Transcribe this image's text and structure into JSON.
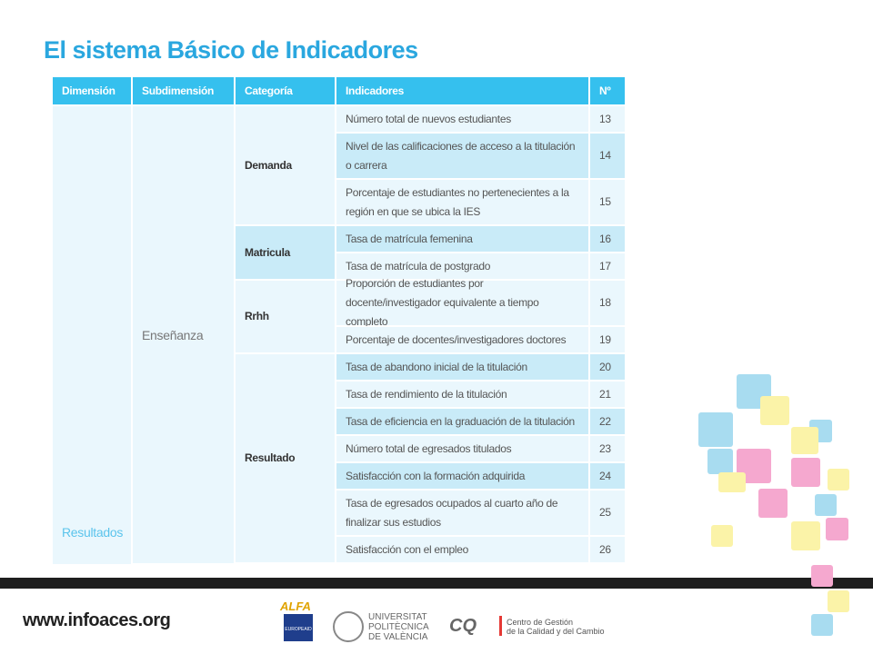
{
  "title": "El sistema Básico de Indicadores",
  "table": {
    "headers": [
      "Dimensión",
      "Subdimensión",
      "Categoría",
      "Indicadores",
      "Nº"
    ],
    "dimension": "Resultados",
    "subdimension": "Enseñanza",
    "categories": [
      {
        "name": "Demanda",
        "indicators": [
          {
            "text": "Número  total de nuevos estudiantes",
            "n": 13
          },
          {
            "text": "Nivel de las calificaciones de acceso a la titulación o carrera",
            "n": 14
          },
          {
            "text": "Porcentaje de estudiantes no pertenecientes a la región en que se ubica la IES",
            "n": 15
          }
        ]
      },
      {
        "name": "Matricula",
        "indicators": [
          {
            "text": "Tasa de matrícula femenina",
            "n": 16
          },
          {
            "text": "Tasa de matrícula de postgrado",
            "n": 17
          }
        ]
      },
      {
        "name": "Rrhh",
        "indicators": [
          {
            "text": "Proporción de estudiantes por docente/investigador equivalente a tiempo completo",
            "n": 18
          },
          {
            "text": "Porcentaje  de  docentes/investigadores  doctores",
            "n": 19
          }
        ]
      },
      {
        "name": "Resultado",
        "indicators": [
          {
            "text": "Tasa de abandono inicial de la titulación",
            "n": 20
          },
          {
            "text": "Tasa de rendimiento de la titulación",
            "n": 21
          },
          {
            "text": "Tasa de eficiencia en la graduación de la titulación",
            "n": 22
          },
          {
            "text": "Número total de egresados titulados",
            "n": 23
          },
          {
            "text": "Satisfacción con la formación adquirida",
            "n": 24
          },
          {
            "text": "Tasa de egresados ocupados al cuarto año de finalizar sus estudios",
            "n": 25
          },
          {
            "text": "Satisfacción con el empleo",
            "n": 26
          }
        ]
      }
    ]
  },
  "footer": {
    "url": "www.infoaces.org",
    "alfa": "ALFA",
    "europeaid": "EUROPEAID",
    "upv": [
      "UNIVERSITAT",
      "POLITÈCNICA",
      "DE VALÈNCIA"
    ],
    "cq": "CQ",
    "cq_text": [
      "Centro de Gestión",
      "de la Calidad y del Cambio"
    ]
  }
}
